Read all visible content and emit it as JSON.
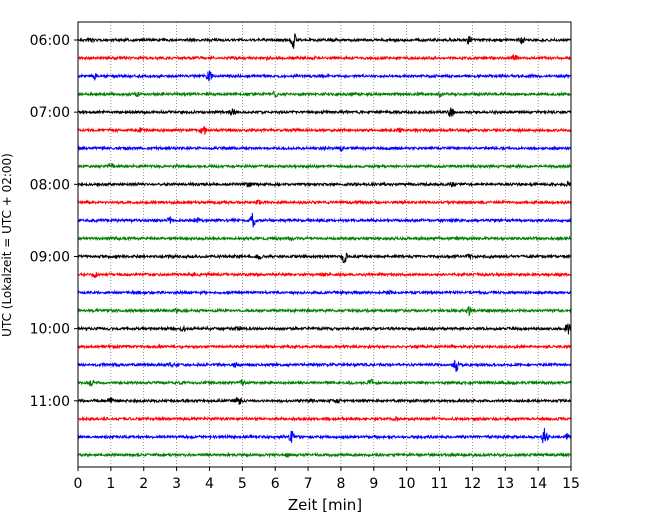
{
  "chart_data": {
    "type": "line",
    "title": "",
    "xlabel": "Zeit  [min]",
    "ylabel": "UTC (Lokalzeit = UTC + 02:00)",
    "xlim": [
      0,
      15
    ],
    "x_ticks": [
      0,
      1,
      2,
      3,
      4,
      5,
      6,
      7,
      8,
      9,
      10,
      11,
      12,
      13,
      14,
      15
    ],
    "x_tick_labels": [
      "0",
      "1",
      "2",
      "3",
      "4",
      "5",
      "6",
      "7",
      "8",
      "9",
      "10",
      "11",
      "12",
      "13",
      "14",
      "15"
    ],
    "y_tick_labels": [
      "06:00",
      "07:00",
      "08:00",
      "09:00",
      "10:00",
      "11:00"
    ],
    "x_grid": true,
    "y_grid": false,
    "legend": "none",
    "trace_interval_minutes": 15,
    "trace_colors": [
      "#000000",
      "#ff0000",
      "#0000ff",
      "#008000"
    ],
    "traces": [
      {
        "start": "06:00",
        "events": [
          [
            0.4,
            0.6
          ],
          [
            6.55,
            1.9
          ],
          [
            11.9,
            0.8
          ],
          [
            13.5,
            0.7
          ]
        ]
      },
      {
        "start": "06:15",
        "events": [
          [
            13.3,
            0.5
          ]
        ]
      },
      {
        "start": "06:30",
        "events": [
          [
            0.5,
            0.6
          ],
          [
            4.0,
            1.1
          ]
        ]
      },
      {
        "start": "06:45",
        "events": [
          [
            1.8,
            0.4
          ],
          [
            6.0,
            0.6
          ],
          [
            11.0,
            0.5
          ]
        ]
      },
      {
        "start": "07:00",
        "events": [
          [
            4.7,
            0.6
          ],
          [
            11.35,
            1.0
          ]
        ]
      },
      {
        "start": "07:15",
        "events": [
          [
            1.9,
            0.4
          ],
          [
            3.8,
            1.2
          ],
          [
            9.8,
            0.4
          ]
        ]
      },
      {
        "start": "07:30",
        "events": [
          [
            8.0,
            0.4
          ]
        ]
      },
      {
        "start": "07:45",
        "events": [
          [
            1.0,
            0.6
          ]
        ]
      },
      {
        "start": "08:00",
        "events": [
          [
            5.2,
            0.5
          ],
          [
            11.4,
            0.6
          ],
          [
            14.9,
            0.5
          ]
        ]
      },
      {
        "start": "08:15",
        "events": [
          [
            5.5,
            0.3
          ]
        ]
      },
      {
        "start": "08:30",
        "events": [
          [
            2.8,
            0.6
          ],
          [
            3.6,
            0.5
          ],
          [
            5.3,
            1.8
          ]
        ]
      },
      {
        "start": "08:45",
        "events": [
          [
            6.5,
            0.3
          ]
        ]
      },
      {
        "start": "09:00",
        "events": [
          [
            5.5,
            0.5
          ],
          [
            8.1,
            1.3
          ],
          [
            11.9,
            0.5
          ]
        ]
      },
      {
        "start": "09:15",
        "events": [
          [
            0.5,
            0.4
          ],
          [
            3.5,
            0.3
          ]
        ]
      },
      {
        "start": "09:30",
        "events": [
          [
            9.5,
            0.3
          ]
        ]
      },
      {
        "start": "09:45",
        "events": [
          [
            3.0,
            0.4
          ],
          [
            11.9,
            0.9
          ]
        ]
      },
      {
        "start": "10:00",
        "events": [
          [
            3.2,
            0.5
          ],
          [
            4.9,
            0.4
          ],
          [
            14.9,
            1.4
          ]
        ]
      },
      {
        "start": "10:15",
        "events": [
          [
            2.5,
            0.3
          ]
        ]
      },
      {
        "start": "10:30",
        "events": [
          [
            2.8,
            0.5
          ],
          [
            4.8,
            0.4
          ],
          [
            11.5,
            1.5
          ]
        ]
      },
      {
        "start": "10:45",
        "events": [
          [
            0.4,
            0.6
          ],
          [
            5.0,
            0.5
          ],
          [
            8.9,
            0.6
          ]
        ]
      },
      {
        "start": "11:00",
        "events": [
          [
            1.0,
            0.5
          ],
          [
            4.9,
            0.8
          ],
          [
            7.9,
            0.5
          ]
        ]
      },
      {
        "start": "11:15",
        "events": [
          [
            9.7,
            0.3
          ]
        ]
      },
      {
        "start": "11:30",
        "events": [
          [
            6.5,
            1.2
          ],
          [
            14.2,
            1.9
          ],
          [
            14.9,
            0.6
          ]
        ]
      },
      {
        "start": "11:45",
        "events": [
          [
            6.4,
            0.4
          ]
        ]
      }
    ]
  }
}
